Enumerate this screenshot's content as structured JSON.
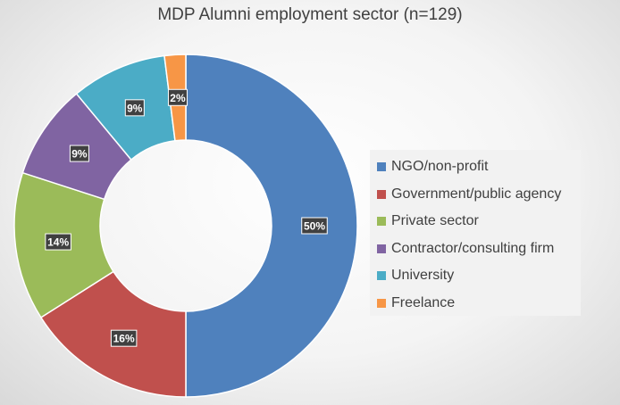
{
  "chart_data": {
    "type": "pie",
    "title": "MDP Alumni employment sector (n=129)",
    "categories": [
      "NGO/non-profit",
      "Government/public agency",
      "Private sector",
      "Contractor/consulting firm",
      "University",
      "Freelance"
    ],
    "values": [
      50,
      16,
      14,
      9,
      9,
      2
    ],
    "data_labels": [
      "50%",
      "16%",
      "14%",
      "9%",
      "9%",
      "2%"
    ],
    "colors": [
      "#4f81bd",
      "#c0504d",
      "#9bbb59",
      "#8064a2",
      "#4bacc6",
      "#f79646"
    ],
    "donut": true,
    "legend_position": "right"
  }
}
